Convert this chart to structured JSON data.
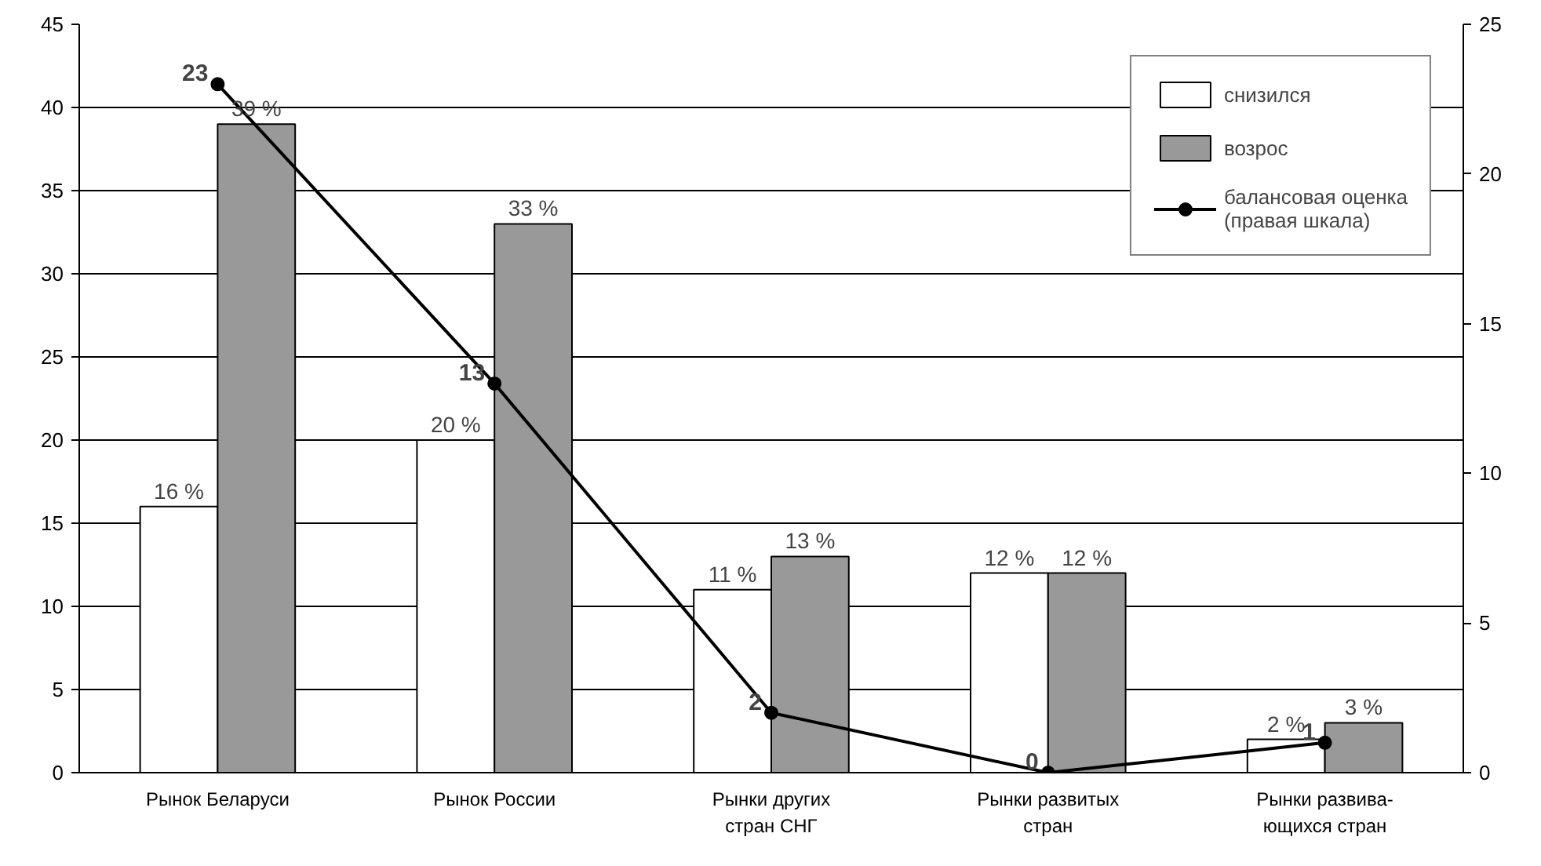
{
  "chart_data": {
    "type": "bar",
    "categories": [
      "Рынок Беларуси",
      "Рынок России",
      "Рынки других\nстран СНГ",
      "Рынки развитых\nстран",
      "Рынки развива-\nющихся стран"
    ],
    "series": [
      {
        "name": "снизился",
        "color": "#ffffff",
        "values": [
          16,
          20,
          11,
          12,
          2
        ],
        "value_labels": [
          "16 %",
          "20 %",
          "11 %",
          "12 %",
          "2 %"
        ]
      },
      {
        "name": "возрос",
        "color": "#999999",
        "values": [
          39,
          33,
          13,
          12,
          3
        ],
        "value_labels": [
          "39 %",
          "33 %",
          "13 %",
          "12 %",
          "3 %"
        ]
      },
      {
        "name": "балансовая оценка\n(правая шкала)",
        "type": "line",
        "axis": "y2",
        "color": "#000000",
        "marker": "circle",
        "values": [
          23,
          13,
          2,
          0,
          1
        ],
        "value_labels": [
          "23",
          "13",
          "2",
          "0",
          "1"
        ]
      }
    ],
    "ylim": [
      0,
      45
    ],
    "yticks": [
      0,
      5,
      10,
      15,
      20,
      25,
      30,
      35,
      40,
      45
    ],
    "y2lim": [
      0,
      25
    ],
    "y2ticks": [
      0,
      5,
      10,
      15,
      20,
      25
    ],
    "grid": "y",
    "legend": "top right"
  }
}
